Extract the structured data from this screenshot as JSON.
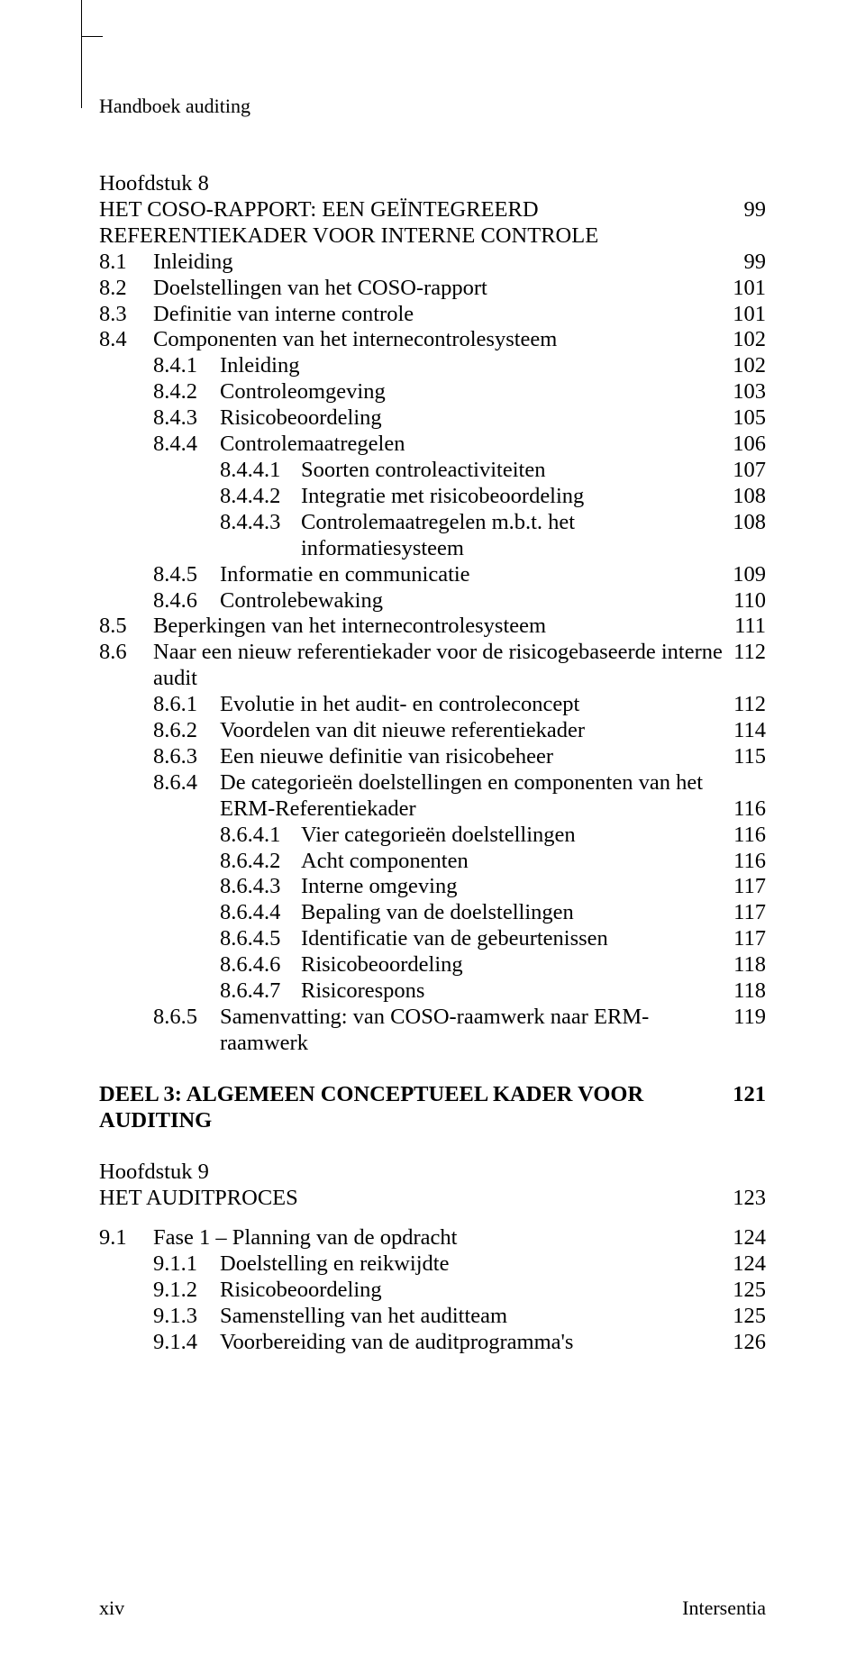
{
  "header": {
    "running_title": "Handboek auditing"
  },
  "footer": {
    "page_number": "xiv",
    "publisher": "Intersentia"
  },
  "colors": {
    "text": "#000000",
    "background": "#ffffff",
    "rule": "#000000"
  },
  "typography": {
    "family": "Times New Roman",
    "body_size_pt": 12,
    "line_height": 1.18
  },
  "toc": {
    "chapter8": {
      "label": "Hoofdstuk 8",
      "title": "HET COSO-RAPPORT: EEN GEÏNTEGREERD REFERENTIEKADER VOOR INTERNE CONTROLE",
      "page": "99",
      "items": [
        {
          "num": "8.1",
          "txt": "Inleiding",
          "pg": "99"
        },
        {
          "num": "8.2",
          "txt": "Doelstellingen van het COSO-rapport",
          "pg": "101"
        },
        {
          "num": "8.3",
          "txt": "Definitie van interne controle",
          "pg": "101"
        },
        {
          "num": "8.4",
          "txt": "Componenten van het internecontrolesysteem",
          "pg": "102"
        }
      ],
      "sub84": [
        {
          "num": "8.4.1",
          "txt": "Inleiding",
          "pg": "102"
        },
        {
          "num": "8.4.2",
          "txt": "Controleomgeving",
          "pg": "103"
        },
        {
          "num": "8.4.3",
          "txt": "Risicobeoordeling",
          "pg": "105"
        },
        {
          "num": "8.4.4",
          "txt": "Controlemaatregelen",
          "pg": "106"
        }
      ],
      "sub844": [
        {
          "num": "8.4.4.1",
          "txt": "Soorten controleactiviteiten",
          "pg": "107"
        },
        {
          "num": "8.4.4.2",
          "txt": "Integratie met risicobeoordeling",
          "pg": "108"
        },
        {
          "num": "8.4.4.3",
          "txt": "Controlemaatregelen m.b.t. het informatiesysteem",
          "pg": "108"
        }
      ],
      "sub84b": [
        {
          "num": "8.4.5",
          "txt": "Informatie en communicatie",
          "pg": "109"
        },
        {
          "num": "8.4.6",
          "txt": "Controlebewaking",
          "pg": "110"
        }
      ],
      "items2": [
        {
          "num": "8.5",
          "txt": "Beperkingen van het internecontrolesysteem",
          "pg": "111"
        },
        {
          "num": "8.6",
          "txt": "Naar een nieuw referentiekader voor de risicogebaseerde interne audit",
          "pg": "112"
        }
      ],
      "sub86": [
        {
          "num": "8.6.1",
          "txt": "Evolutie in het audit- en controleconcept",
          "pg": "112"
        },
        {
          "num": "8.6.2",
          "txt": "Voordelen van dit nieuwe referentiekader",
          "pg": "114"
        },
        {
          "num": "8.6.3",
          "txt": "Een nieuwe definitie van risicobeheer",
          "pg": "115"
        }
      ],
      "sub864_lead": {
        "num": "8.6.4",
        "txt": "De categorieën doelstellingen en componenten van het ERM-Referentiekader",
        "txt_line1": "De categorieën doelstellingen en componenten van het",
        "txt_line2": "ERM-Referentiekader",
        "pg": "116"
      },
      "sub864": [
        {
          "num": "8.6.4.1",
          "txt": "Vier categorieën doelstellingen",
          "pg": "116"
        },
        {
          "num": "8.6.4.2",
          "txt": "Acht componenten",
          "pg": "116"
        },
        {
          "num": "8.6.4.3",
          "txt": "Interne omgeving",
          "pg": "117"
        },
        {
          "num": "8.6.4.4",
          "txt": "Bepaling van de doelstellingen",
          "pg": "117"
        },
        {
          "num": "8.6.4.5",
          "txt": "Identificatie van de gebeurtenissen",
          "pg": "117"
        },
        {
          "num": "8.6.4.6",
          "txt": "Risicobeoordeling",
          "pg": "118"
        },
        {
          "num": "8.6.4.7",
          "txt": "Risicorespons",
          "pg": "118"
        }
      ],
      "sub86b": [
        {
          "num": "8.6.5",
          "txt": "Samenvatting: van COSO-raamwerk naar ERM-raamwerk",
          "pg": "119"
        }
      ]
    },
    "deel3": {
      "title": "DEEL 3: ALGEMEEN CONCEPTUEEL KADER VOOR AUDITING",
      "page": "121"
    },
    "chapter9": {
      "label": "Hoofdstuk 9",
      "title": "HET AUDITPROCES",
      "page": "123",
      "items": [
        {
          "num": "9.1",
          "txt": "Fase 1 – Planning van de opdracht",
          "pg": "124"
        }
      ],
      "sub91": [
        {
          "num": "9.1.1",
          "txt": "Doelstelling en reikwijdte",
          "pg": "124"
        },
        {
          "num": "9.1.2",
          "txt": "Risicobeoordeling",
          "pg": "125"
        },
        {
          "num": "9.1.3",
          "txt": "Samenstelling van het auditteam",
          "pg": "125"
        },
        {
          "num": "9.1.4",
          "txt": "Voorbereiding van de auditprogramma's",
          "pg": "126"
        }
      ]
    }
  }
}
